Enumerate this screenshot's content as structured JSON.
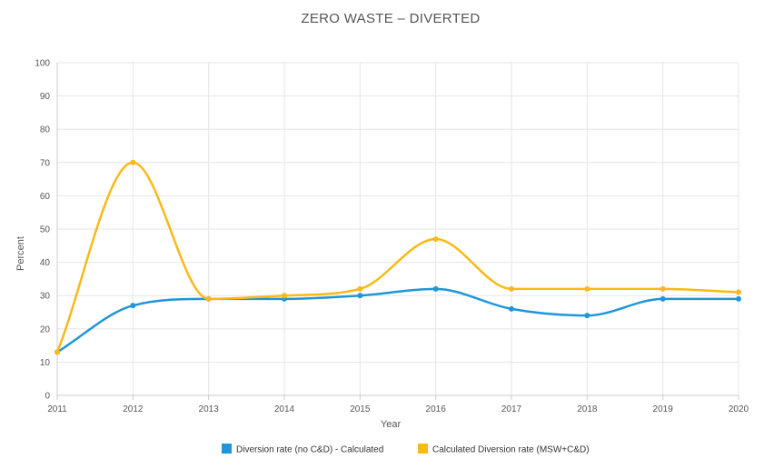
{
  "chart_data": {
    "type": "line",
    "title": "ZERO WASTE – DIVERTED",
    "xlabel": "Year",
    "ylabel": "Percent",
    "x": [
      "2011",
      "2012",
      "2013",
      "2014",
      "2015",
      "2016",
      "2017",
      "2018",
      "2019",
      "2020"
    ],
    "ylim": [
      0,
      100
    ],
    "yticks": [
      0,
      10,
      20,
      30,
      40,
      50,
      60,
      70,
      80,
      90,
      100
    ],
    "grid": true,
    "smooth": true,
    "legend_position": "bottom",
    "series": [
      {
        "name": "Diversion rate (no C&D) - Calculated",
        "color": "#1f96d8",
        "values": [
          13,
          27,
          29,
          29,
          30,
          32,
          26,
          24,
          29,
          29
        ]
      },
      {
        "name": "Calculated Diversion rate (MSW+C&D)",
        "color": "#fbb917",
        "values": [
          13,
          70,
          29,
          30,
          32,
          47,
          32,
          32,
          32,
          31
        ]
      }
    ]
  }
}
